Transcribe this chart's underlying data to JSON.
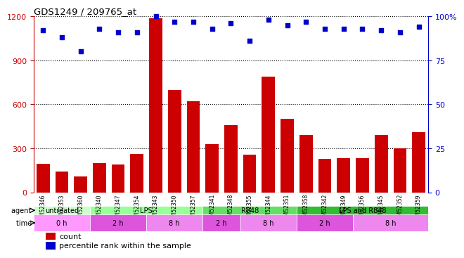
{
  "title": "GDS1249 / 209765_at",
  "samples": [
    "GSM52346",
    "GSM52353",
    "GSM52360",
    "GSM52340",
    "GSM52347",
    "GSM52354",
    "GSM52343",
    "GSM52350",
    "GSM52357",
    "GSM52341",
    "GSM52348",
    "GSM52355",
    "GSM52344",
    "GSM52351",
    "GSM52358",
    "GSM52342",
    "GSM52349",
    "GSM52356",
    "GSM52345",
    "GSM52352",
    "GSM52359"
  ],
  "counts": [
    195,
    140,
    110,
    200,
    190,
    260,
    1185,
    700,
    620,
    330,
    460,
    255,
    790,
    500,
    390,
    230,
    235,
    235,
    390,
    300,
    410
  ],
  "percentiles": [
    92,
    88,
    80,
    93,
    91,
    91,
    100,
    97,
    97,
    93,
    96,
    86,
    98,
    95,
    97,
    93,
    93,
    93,
    92,
    91,
    94
  ],
  "bar_color": "#cc0000",
  "dot_color": "#0000cc",
  "ylim_left": [
    0,
    1200
  ],
  "ylim_right": [
    0,
    100
  ],
  "yticks_left": [
    0,
    300,
    600,
    900,
    1200
  ],
  "yticks_right": [
    0,
    25,
    50,
    75,
    100
  ],
  "agent_groups": [
    {
      "label": "untreated",
      "start": 0,
      "end": 3,
      "color": "#ccffcc"
    },
    {
      "label": "LPS",
      "start": 3,
      "end": 9,
      "color": "#99ff99"
    },
    {
      "label": "R848",
      "start": 9,
      "end": 14,
      "color": "#66dd66"
    },
    {
      "label": "LPS and R848",
      "start": 14,
      "end": 21,
      "color": "#33bb33"
    }
  ],
  "time_groups": [
    {
      "label": "0 h",
      "start": 0,
      "end": 3,
      "color": "#ff99ff"
    },
    {
      "label": "2 h",
      "start": 3,
      "end": 6,
      "color": "#dd55dd"
    },
    {
      "label": "8 h",
      "start": 6,
      "end": 9,
      "color": "#ee88ee"
    },
    {
      "label": "2 h",
      "start": 9,
      "end": 11,
      "color": "#dd55dd"
    },
    {
      "label": "8 h",
      "start": 11,
      "end": 14,
      "color": "#ee88ee"
    },
    {
      "label": "2 h",
      "start": 14,
      "end": 17,
      "color": "#dd55dd"
    },
    {
      "label": "8 h",
      "start": 17,
      "end": 21,
      "color": "#ee88ee"
    }
  ],
  "legend_count_label": "count",
  "legend_pct_label": "percentile rank within the sample",
  "bar_color_hex": "#cc0000",
  "dot_color_hex": "#0000cc"
}
